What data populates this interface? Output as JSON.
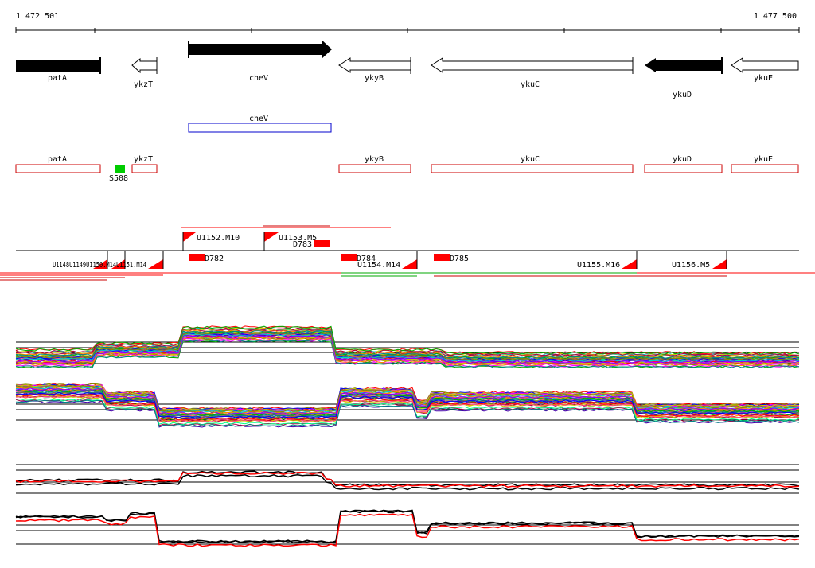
{
  "coords": {
    "start_label": "1 472 501",
    "end_label": "1 477 500"
  },
  "colors": {
    "gene_filled": "#000000",
    "cds_box": "#0000cc",
    "annotation_box": "#cc0000",
    "marker": "#00cc00",
    "region": "#ff0000",
    "bar": "#ff0000",
    "green_line": "#00aa00",
    "black": "#000000",
    "red": "#ff0000"
  },
  "genes": [
    {
      "name": "patA",
      "strand": "-",
      "filled": true
    },
    {
      "name": "ykzT",
      "strand": "-",
      "filled": false
    },
    {
      "name": "cheV",
      "strand": "+",
      "filled": true
    },
    {
      "name": "ykyB",
      "strand": "-",
      "filled": false
    },
    {
      "name": "ykuC",
      "strand": "-",
      "filled": false
    },
    {
      "name": "ykuD",
      "strand": "-",
      "filled": true
    },
    {
      "name": "ykuE",
      "strand": "-",
      "filled": false
    }
  ],
  "cds_track": [
    {
      "name": "cheV"
    }
  ],
  "annotation_track": [
    {
      "name": "patA"
    },
    {
      "name": "ykzT"
    },
    {
      "name": "ykyB"
    },
    {
      "name": "ykuC"
    },
    {
      "name": "ykuD"
    },
    {
      "name": "ykuE"
    }
  ],
  "markers": [
    {
      "name": "S508"
    }
  ],
  "transcripts": [
    {
      "name": "U1152.M10"
    },
    {
      "name": "U1153.M5"
    },
    {
      "name": "U1154.M14"
    },
    {
      "name": "U1155.M16"
    },
    {
      "name": "U1156.M5"
    },
    {
      "name": "U1148U1149U1150.M14U1151.M14"
    }
  ],
  "regions": [
    {
      "name": "D782"
    },
    {
      "name": "D783"
    },
    {
      "name": "D784"
    },
    {
      "name": "D785"
    }
  ]
}
